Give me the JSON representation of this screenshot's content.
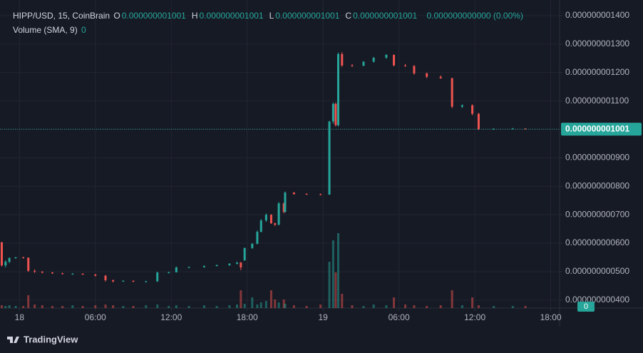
{
  "header": {
    "symbol": "HIPP/USD, 15, CoinBrain",
    "ohlc": [
      {
        "key": "O",
        "value": "0.000000001001"
      },
      {
        "key": "H",
        "value": "0.000000001001"
      },
      {
        "key": "L",
        "value": "0.000000001001"
      },
      {
        "key": "C",
        "value": "0.000000001001"
      }
    ],
    "change": "0.000000000000 (0.00%)",
    "volume_label": "Volume (SMA, 9)",
    "volume_value": "0"
  },
  "chart_data": {
    "type": "candlestick",
    "x": [
      -1.4,
      -1.1,
      -0.8,
      -0.3,
      0.3,
      0.7,
      1.2,
      1.8,
      2.6,
      3.4,
      4.2,
      5.0,
      6.0,
      6.8,
      7.4,
      8.2,
      9.0,
      10.0,
      10.9,
      11.8,
      12.4,
      13.4,
      14.6,
      15.6,
      16.6,
      17.2,
      17.5,
      17.8,
      18.4,
      18.8,
      19.1,
      19.5,
      19.9,
      20.2,
      20.5,
      20.9,
      21.0,
      21.7,
      22.7,
      23.8,
      24.5,
      24.8,
      25.0,
      25.2,
      25.5,
      26.3,
      27.2,
      28.0,
      29.0,
      29.6,
      30.5,
      31.2,
      32.2,
      33.3,
      34.2,
      35.0,
      35.8,
      36.3,
      37.5,
      39.0,
      40.0
    ],
    "open": [
      6.03e-10,
      5.22e-10,
      5.35e-10,
      5.48e-10,
      5.5e-10,
      5.49e-10,
      5.03e-10,
      5e-10,
      4.97e-10,
      4.94e-10,
      4.92e-10,
      4.93e-10,
      4.9e-10,
      4.86e-10,
      4.7e-10,
      4.66e-10,
      4.68e-10,
      4.65e-10,
      4.66e-10,
      4.97e-10,
      4.98e-10,
      5.15e-10,
      5.16e-10,
      5.2e-10,
      5.23e-10,
      5.28e-10,
      5.32e-10,
      5.4e-10,
      5.83e-10,
      5.98e-10,
      6.4e-10,
      6.8e-10,
      7e-10,
      6.7e-10,
      6.65e-10,
      7.4e-10,
      7.1e-10,
      7.78e-10,
      7.73e-10,
      7.72e-10,
      7.71e-10,
      1.028e-09,
      1.09e-09,
      1.015e-09,
      1.265e-09,
      1.225e-09,
      1.224e-09,
      1.238e-09,
      1.252e-09,
      1.262e-09,
      1.225e-09,
      1.223e-09,
      1.197e-09,
      1.185e-09,
      1.18e-09,
      1.08e-09,
      1.085e-09,
      1.055e-09,
      1.001e-09,
      1.002e-09,
      1.003e-09
    ],
    "high": [
      6.05e-10,
      5.4e-10,
      5.5e-10,
      5.52e-10,
      5.53e-10,
      5.5e-10,
      5.08e-10,
      5.02e-10,
      4.99e-10,
      4.97e-10,
      4.95e-10,
      4.94e-10,
      4.92e-10,
      4.88e-10,
      4.72e-10,
      4.7e-10,
      4.69e-10,
      4.68e-10,
      5e-10,
      5e-10,
      5.18e-10,
      5.18e-10,
      5.22e-10,
      5.25e-10,
      5.3e-10,
      5.35e-10,
      5.34e-10,
      5.85e-10,
      6e-10,
      6.45e-10,
      6.85e-10,
      7.05e-10,
      7.02e-10,
      6.72e-10,
      7.45e-10,
      7.42e-10,
      7.82e-10,
      7.8e-10,
      7.76e-10,
      7.75e-10,
      1.03e-09,
      1.095e-09,
      1.095e-09,
      1.27e-09,
      1.272e-09,
      1.23e-09,
      1.24e-09,
      1.255e-09,
      1.265e-09,
      1.264e-09,
      1.23e-09,
      1.226e-09,
      1.2e-09,
      1.19e-09,
      1.182e-09,
      1.088e-09,
      1.088e-09,
      1.058e-09,
      1.004e-09,
      1.005e-09,
      1.004e-09
    ],
    "low": [
      5.18e-10,
      5.15e-10,
      5.3e-10,
      5.45e-10,
      5.46e-10,
      5e-10,
      4.95e-10,
      4.94e-10,
      4.92e-10,
      4.9e-10,
      4.89e-10,
      4.88e-10,
      4.83e-10,
      4.65e-10,
      4.62e-10,
      4.64e-10,
      4.63e-10,
      4.62e-10,
      4.64e-10,
      4.94e-10,
      4.97e-10,
      5.12e-10,
      5.14e-10,
      5.18e-10,
      5.2e-10,
      5.25e-10,
      5.05e-10,
      5.38e-10,
      5.8e-10,
      5.96e-10,
      6.38e-10,
      6.75e-10,
      6.68e-10,
      6.6e-10,
      6.63e-10,
      7.05e-10,
      7.08e-10,
      7.7e-10,
      7.7e-10,
      7.68e-10,
      7.7e-10,
      1.02e-09,
      1.01e-09,
      1.01e-09,
      1.22e-09,
      1.22e-09,
      1.222e-09,
      1.235e-09,
      1.248e-09,
      1.222e-09,
      1.22e-09,
      1.192e-09,
      1.18e-09,
      1.178e-09,
      1.075e-09,
      1.075e-09,
      1.05e-09,
      9.98e-10,
      9.99e-10,
      1e-09,
      1e-09
    ],
    "close": [
      5.22e-10,
      5.35e-10,
      5.48e-10,
      5.5e-10,
      5.49e-10,
      5.03e-10,
      5e-10,
      4.97e-10,
      4.94e-10,
      4.92e-10,
      4.93e-10,
      4.9e-10,
      4.86e-10,
      4.7e-10,
      4.66e-10,
      4.68e-10,
      4.65e-10,
      4.66e-10,
      4.97e-10,
      4.98e-10,
      5.15e-10,
      5.16e-10,
      5.2e-10,
      5.23e-10,
      5.28e-10,
      5.32e-10,
      5.15e-10,
      5.83e-10,
      5.98e-10,
      6.4e-10,
      6.8e-10,
      7e-10,
      6.7e-10,
      6.65e-10,
      7.4e-10,
      7.1e-10,
      7.78e-10,
      7.73e-10,
      7.72e-10,
      7.71e-10,
      1.028e-09,
      1.09e-09,
      1.015e-09,
      1.265e-09,
      1.225e-09,
      1.224e-09,
      1.238e-09,
      1.252e-09,
      1.262e-09,
      1.225e-09,
      1.223e-09,
      1.197e-09,
      1.185e-09,
      1.18e-09,
      1.08e-09,
      1.085e-09,
      1.055e-09,
      1.001e-09,
      1.002e-09,
      1.003e-09,
      1.001e-09
    ],
    "volume": [
      4,
      3,
      4,
      3,
      3,
      18,
      5,
      4,
      3,
      3,
      4,
      3,
      4,
      5,
      4,
      3,
      3,
      4,
      5,
      3,
      4,
      3,
      4,
      3,
      4,
      5,
      25,
      6,
      15,
      5,
      8,
      10,
      25,
      12,
      8,
      12,
      6,
      4,
      3,
      5,
      65,
      95,
      50,
      105,
      20,
      4,
      3,
      5,
      4,
      15,
      5,
      4,
      3,
      4,
      25,
      4,
      15,
      4,
      3,
      3,
      3
    ],
    "vlim": [
      0,
      120
    ],
    "up_color": "#26a69a",
    "down_color": "#ef5350",
    "xlim": [
      -1.54,
      42.7
    ],
    "xticks": [
      {
        "value": 0,
        "label": "18"
      },
      {
        "value": 6,
        "label": "06:00"
      },
      {
        "value": 12,
        "label": "12:00"
      },
      {
        "value": 18,
        "label": "18:00"
      },
      {
        "value": 24,
        "label": "19"
      },
      {
        "value": 30,
        "label": "06:00"
      },
      {
        "value": 36,
        "label": "12:00"
      },
      {
        "value": 42,
        "label": "18:00"
      }
    ],
    "ylim": [
      3.72e-10,
      1.455e-09
    ],
    "yticks": [
      {
        "value": 4e-10,
        "label": "0.000000000400"
      },
      {
        "value": 5e-10,
        "label": "0.000000000500"
      },
      {
        "value": 6e-10,
        "label": "0.000000000600"
      },
      {
        "value": 7e-10,
        "label": "0.000000000700"
      },
      {
        "value": 8e-10,
        "label": "0.000000000800"
      },
      {
        "value": 9e-10,
        "label": "0.000000000900"
      },
      {
        "value": 1e-09,
        "label": "0.000000001000"
      },
      {
        "value": 1.1e-09,
        "label": "0.000000001100"
      },
      {
        "value": 1.2e-09,
        "label": "0.000000001200"
      },
      {
        "value": 1.3e-09,
        "label": "0.000000001300"
      },
      {
        "value": 1.4e-09,
        "label": "0.000000001400"
      }
    ],
    "last_price": {
      "value": 1.001e-09,
      "label": "0.000000001001"
    },
    "grid": true
  },
  "footer": {
    "brand": "TradingView"
  }
}
